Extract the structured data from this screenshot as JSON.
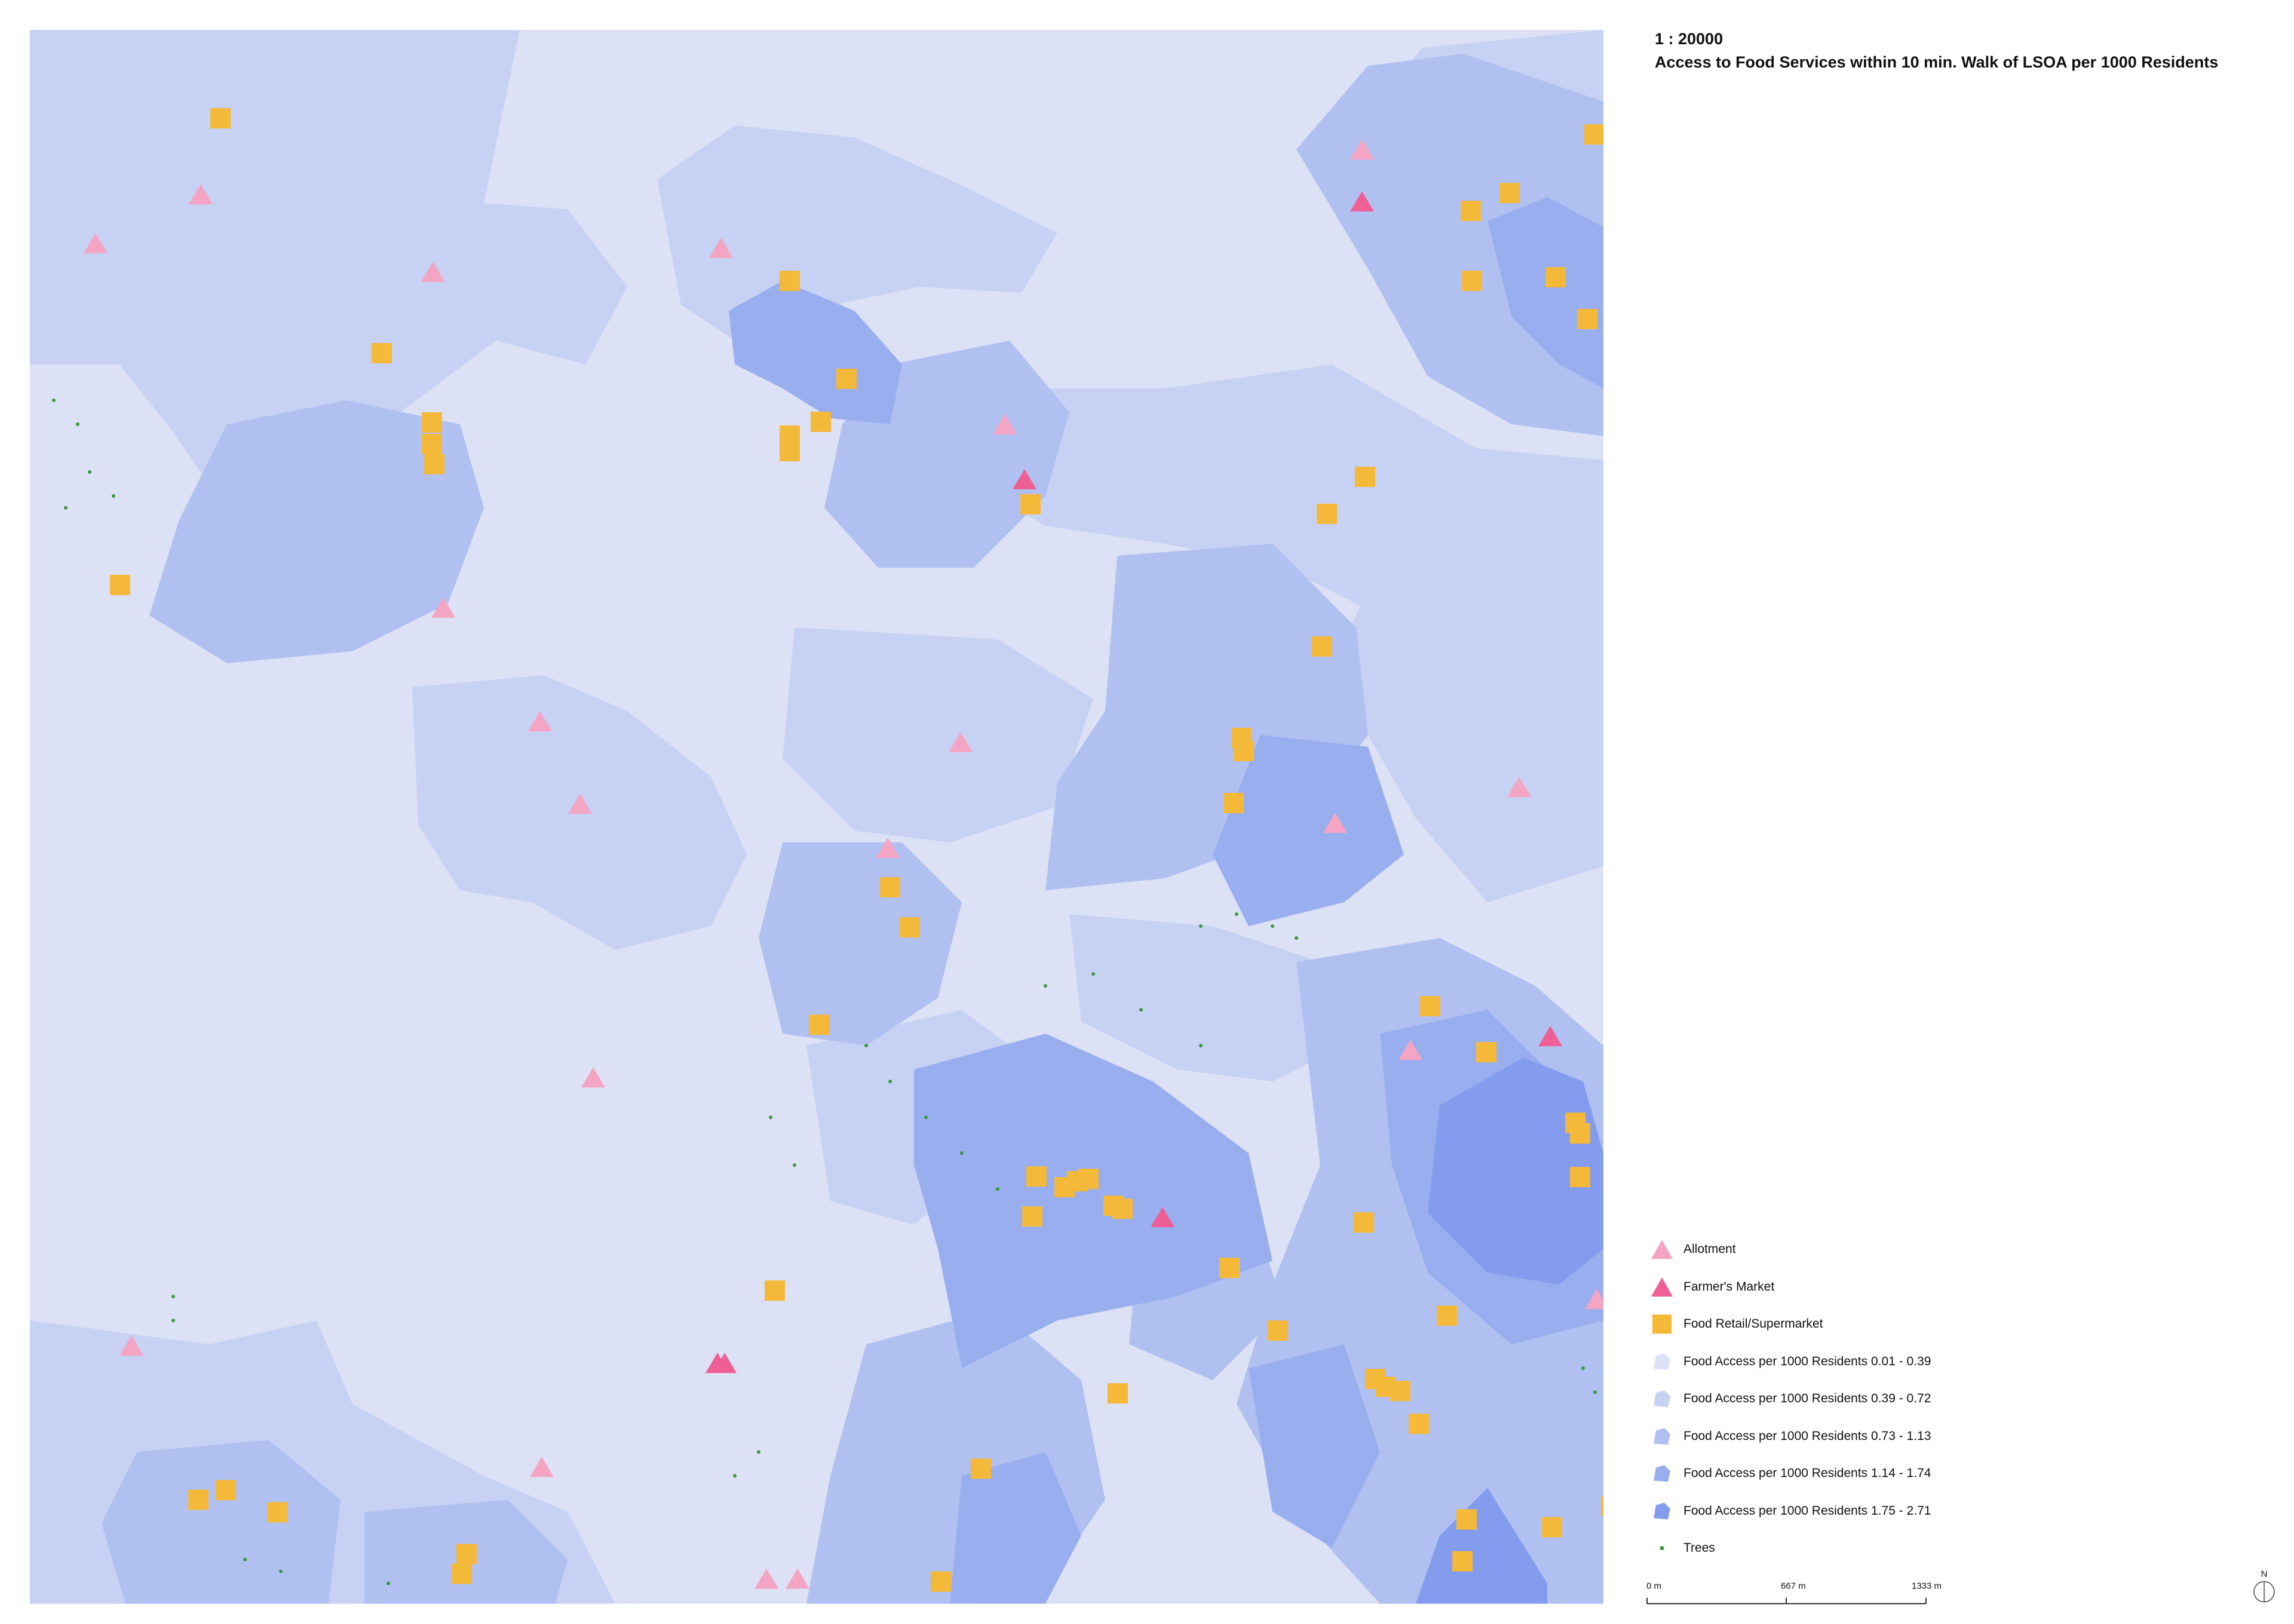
{
  "header": {
    "scale_ratio": "1 : 20000",
    "title": "Access to Food Services within 10 min. Walk of LSOA per 1000 Residents"
  },
  "colors": {
    "class_1": "#dde1f5",
    "class_2": "#c7d1f3",
    "class_3": "#b0c0f1",
    "class_4": "#99aeef",
    "class_5": "#839ced",
    "allotment": "#f4a5c4",
    "farmers_market": "#ee5f96",
    "food_retail": "#f5b93a",
    "trees": "#3a9a3a"
  },
  "legend": {
    "items": [
      {
        "label": "Allotment",
        "icon": "triangle-icon",
        "color": "#f4a5c4"
      },
      {
        "label": "Farmer's Market",
        "icon": "triangle-icon",
        "color": "#ee5f96"
      },
      {
        "label": "Food Retail/Supermarket",
        "icon": "square-icon",
        "color": "#f5b93a"
      },
      {
        "label": "Food Access per 1000 Residents 0.01 - 0.39",
        "icon": "polygon-swatch-icon",
        "color": "#dde1f5"
      },
      {
        "label": "Food Access per 1000 Residents 0.39 - 0.72",
        "icon": "polygon-swatch-icon",
        "color": "#c7d1f3"
      },
      {
        "label": "Food Access per 1000 Residents 0.73 - 1.13",
        "icon": "polygon-swatch-icon",
        "color": "#b0c0f1"
      },
      {
        "label": "Food Access per 1000 Residents 1.14 - 1.74",
        "icon": "polygon-swatch-icon",
        "color": "#99aeef"
      },
      {
        "label": "Food Access per 1000 Residents 1.75 - 2.71",
        "icon": "polygon-swatch-icon",
        "color": "#839ced"
      },
      {
        "label": "Trees",
        "icon": "dot-icon",
        "color": "#3a9a3a"
      }
    ]
  },
  "scalebar": {
    "labels": [
      "0 m",
      "667 m",
      "1333 m"
    ]
  },
  "north_arrow": {
    "label": "N",
    "icon": "north-arrow-icon"
  }
}
